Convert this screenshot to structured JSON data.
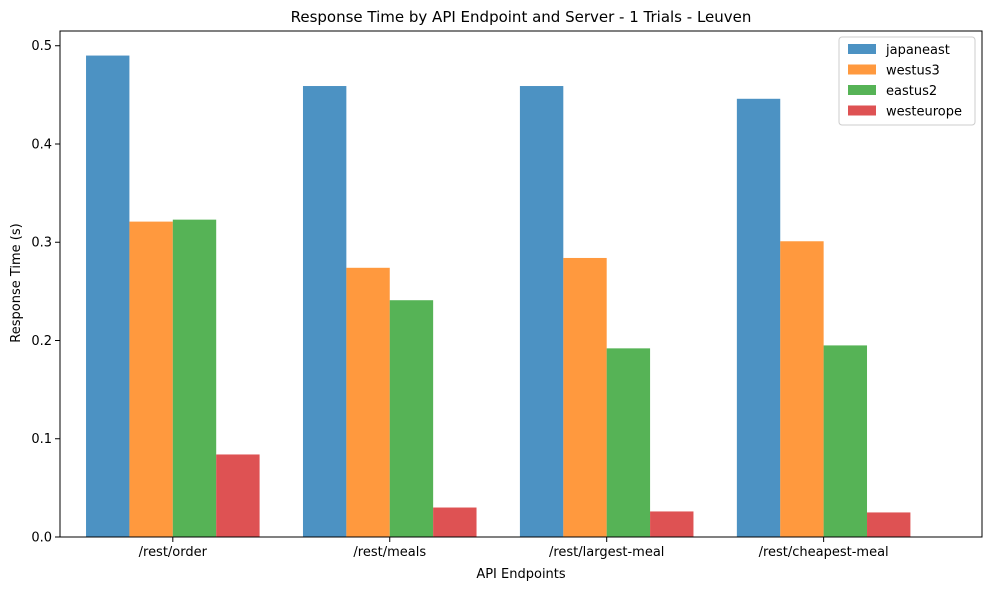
{
  "chart_data": {
    "type": "bar",
    "title": "Response Time by API Endpoint and Server - 1 Trials - Leuven",
    "xlabel": "API Endpoints",
    "ylabel": "Response Time (s)",
    "categories": [
      "/rest/order",
      "/rest/meals",
      "/rest/largest-meal",
      "/rest/cheapest-meal"
    ],
    "series": [
      {
        "name": "japaneast",
        "color": "#1f77b4",
        "values": [
          0.49,
          0.459,
          0.459,
          0.446
        ]
      },
      {
        "name": "westus3",
        "color": "#ff7f0e",
        "values": [
          0.321,
          0.274,
          0.284,
          0.301
        ]
      },
      {
        "name": "eastus2",
        "color": "#2ca02c",
        "values": [
          0.323,
          0.241,
          0.192,
          0.195
        ]
      },
      {
        "name": "westeurope",
        "color": "#d62728",
        "values": [
          0.084,
          0.03,
          0.026,
          0.025
        ]
      }
    ],
    "bar_alpha": 0.8,
    "ylim": [
      0,
      0.515
    ],
    "yticks": [
      "0.0",
      "0.1",
      "0.2",
      "0.3",
      "0.4",
      "0.5"
    ],
    "grid": false,
    "legend_position": "top-right"
  }
}
